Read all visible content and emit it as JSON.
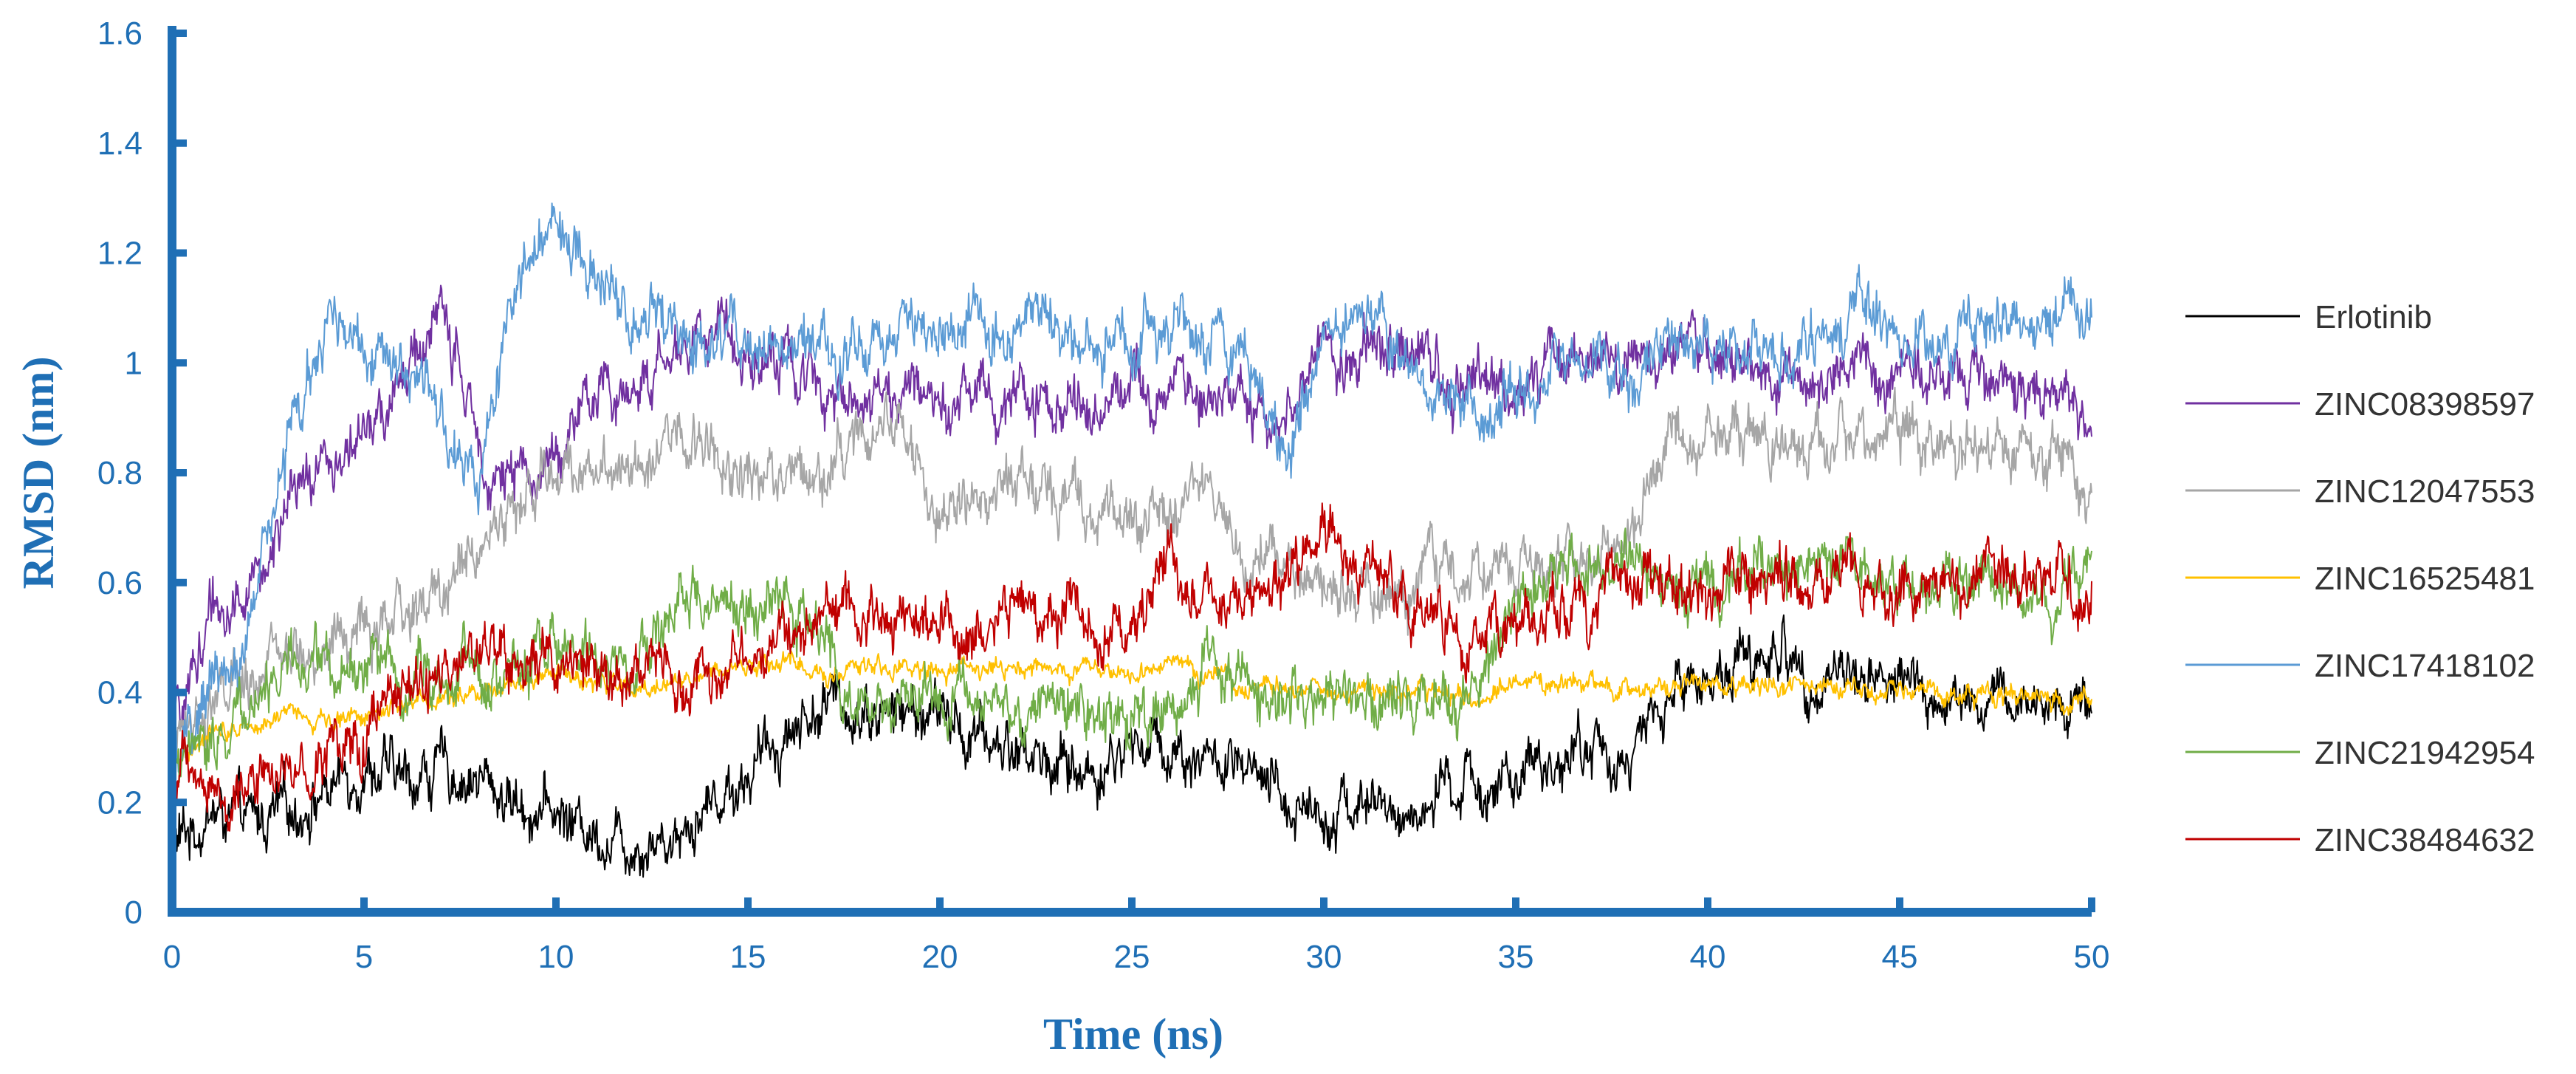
{
  "chart_data": {
    "type": "line",
    "title": "",
    "xlabel": "Time (ns)",
    "ylabel": "RMSD (nm)",
    "xlim": [
      0,
      50
    ],
    "ylim": [
      0,
      1.6
    ],
    "xticks": [
      0,
      5,
      10,
      15,
      20,
      25,
      30,
      35,
      40,
      45,
      50
    ],
    "yticks": [
      0,
      0.2,
      0.4,
      0.6,
      0.8,
      1,
      1.2,
      1.4,
      1.6
    ],
    "xtick_labels": [
      "0",
      "5",
      "10",
      "15",
      "20",
      "25",
      "30",
      "35",
      "40",
      "45",
      "50"
    ],
    "ytick_labels": [
      "0",
      "0.2",
      "0.4",
      "0.6",
      "0.8",
      "1",
      "1.2",
      "1.4",
      "1.6"
    ],
    "grid": false,
    "legend_position": "right",
    "axis_color": "#1f6fb5",
    "noise_note": "values are approximate trend of noisy MD traces",
    "series": [
      {
        "name": "Erlotinib",
        "color": "#000000",
        "x": [
          0,
          1,
          2,
          3,
          4,
          5,
          6,
          7,
          8,
          9,
          10,
          11,
          12,
          13,
          14,
          15,
          16,
          17,
          18,
          19,
          20,
          21,
          22,
          23,
          24,
          25,
          26,
          27,
          28,
          29,
          30,
          31,
          32,
          33,
          34,
          35,
          36,
          37,
          38,
          39,
          40,
          41,
          42,
          43,
          44,
          45,
          46,
          47,
          48,
          49,
          50
        ],
        "y": [
          0.12,
          0.18,
          0.16,
          0.18,
          0.22,
          0.27,
          0.24,
          0.26,
          0.24,
          0.2,
          0.18,
          0.15,
          0.13,
          0.14,
          0.2,
          0.25,
          0.33,
          0.38,
          0.37,
          0.36,
          0.36,
          0.31,
          0.3,
          0.27,
          0.25,
          0.31,
          0.3,
          0.28,
          0.24,
          0.2,
          0.19,
          0.2,
          0.17,
          0.2,
          0.24,
          0.22,
          0.28,
          0.3,
          0.27,
          0.4,
          0.43,
          0.46,
          0.47,
          0.42,
          0.44,
          0.42,
          0.38,
          0.37,
          0.38,
          0.38,
          0.39
        ]
      },
      {
        "name": "ZINC08398597",
        "color": "#7030a0",
        "x": [
          0,
          1,
          2,
          3,
          4,
          5,
          6,
          7,
          8,
          9,
          10,
          11,
          12,
          13,
          14,
          15,
          16,
          17,
          18,
          19,
          20,
          21,
          22,
          23,
          24,
          25,
          26,
          27,
          28,
          29,
          30,
          31,
          32,
          33,
          34,
          35,
          36,
          37,
          38,
          39,
          40,
          41,
          42,
          43,
          44,
          45,
          46,
          47,
          48,
          49,
          50
        ],
        "y": [
          0.3,
          0.55,
          0.58,
          0.72,
          0.82,
          0.86,
          0.96,
          1.1,
          0.85,
          0.77,
          0.84,
          0.93,
          0.96,
          1.0,
          1.08,
          1.03,
          0.99,
          0.97,
          0.94,
          0.93,
          0.96,
          0.95,
          0.93,
          0.92,
          0.93,
          0.97,
          0.96,
          0.95,
          0.92,
          0.9,
          1.02,
          1.03,
          1.0,
          0.98,
          0.95,
          0.96,
          1.02,
          1.01,
          1.0,
          1.01,
          1.0,
          0.98,
          0.98,
          0.97,
          0.98,
          0.96,
          0.97,
          0.98,
          0.96,
          0.93,
          0.9
        ]
      },
      {
        "name": "ZINC12047553",
        "color": "#a6a6a6",
        "x": [
          0,
          1,
          2,
          3,
          4,
          5,
          6,
          7,
          8,
          9,
          10,
          11,
          12,
          13,
          14,
          15,
          16,
          17,
          18,
          19,
          20,
          21,
          22,
          23,
          24,
          25,
          26,
          27,
          28,
          29,
          30,
          31,
          32,
          33,
          34,
          35,
          36,
          37,
          38,
          39,
          40,
          41,
          42,
          43,
          44,
          45,
          46,
          47,
          48,
          49,
          50
        ],
        "y": [
          0.3,
          0.38,
          0.42,
          0.46,
          0.48,
          0.5,
          0.53,
          0.58,
          0.68,
          0.74,
          0.8,
          0.82,
          0.84,
          0.86,
          0.84,
          0.81,
          0.8,
          0.82,
          0.86,
          0.9,
          0.72,
          0.75,
          0.78,
          0.77,
          0.76,
          0.72,
          0.74,
          0.76,
          0.66,
          0.62,
          0.6,
          0.58,
          0.56,
          0.63,
          0.64,
          0.62,
          0.63,
          0.64,
          0.68,
          0.86,
          0.84,
          0.85,
          0.84,
          0.85,
          0.86,
          0.86,
          0.85,
          0.84,
          0.84,
          0.82,
          0.8
        ]
      },
      {
        "name": "ZINC16525481",
        "color": "#ffc000",
        "x": [
          0,
          1,
          2,
          3,
          4,
          5,
          6,
          7,
          8,
          9,
          10,
          11,
          12,
          13,
          14,
          15,
          16,
          17,
          18,
          19,
          20,
          21,
          22,
          23,
          24,
          25,
          26,
          27,
          28,
          29,
          30,
          31,
          32,
          33,
          34,
          35,
          36,
          37,
          38,
          39,
          40,
          41,
          42,
          43,
          44,
          45,
          46,
          47,
          48,
          49,
          50
        ],
        "y": [
          0.28,
          0.33,
          0.35,
          0.36,
          0.35,
          0.36,
          0.38,
          0.39,
          0.41,
          0.42,
          0.43,
          0.42,
          0.4,
          0.42,
          0.43,
          0.45,
          0.46,
          0.43,
          0.44,
          0.45,
          0.43,
          0.44,
          0.44,
          0.43,
          0.44,
          0.43,
          0.44,
          0.43,
          0.41,
          0.42,
          0.41,
          0.4,
          0.4,
          0.39,
          0.4,
          0.41,
          0.42,
          0.41,
          0.4,
          0.41,
          0.41,
          0.42,
          0.41,
          0.41,
          0.4,
          0.4,
          0.4,
          0.39,
          0.39,
          0.39,
          0.39
        ]
      },
      {
        "name": "ZINC17418102",
        "color": "#5b9bd5",
        "x": [
          0,
          1,
          2,
          3,
          4,
          5,
          6,
          7,
          8,
          9,
          10,
          11,
          12,
          13,
          14,
          15,
          16,
          17,
          18,
          19,
          20,
          21,
          22,
          23,
          24,
          25,
          26,
          27,
          28,
          29,
          30,
          31,
          32,
          33,
          34,
          35,
          36,
          37,
          38,
          39,
          40,
          41,
          42,
          43,
          44,
          45,
          46,
          47,
          48,
          49,
          50
        ],
        "y": [
          0.25,
          0.4,
          0.5,
          0.85,
          1.05,
          1.05,
          1.02,
          0.88,
          0.75,
          1.15,
          1.25,
          1.18,
          1.08,
          1.06,
          1.02,
          1.04,
          1.02,
          1.0,
          1.02,
          1.05,
          1.04,
          1.06,
          1.05,
          1.08,
          1.04,
          1.06,
          1.08,
          1.05,
          1.02,
          0.8,
          1.05,
          1.1,
          1.03,
          0.92,
          0.9,
          0.97,
          1.0,
          0.98,
          0.96,
          1.02,
          1.03,
          1.04,
          1.0,
          1.06,
          1.1,
          1.02,
          1.03,
          1.06,
          1.08,
          1.07,
          1.08
        ]
      },
      {
        "name": "ZINC21942954",
        "color": "#70ad47",
        "x": [
          0,
          1,
          2,
          3,
          4,
          5,
          6,
          7,
          8,
          9,
          10,
          11,
          12,
          13,
          14,
          15,
          16,
          17,
          18,
          19,
          20,
          21,
          22,
          23,
          24,
          25,
          26,
          27,
          28,
          29,
          30,
          31,
          32,
          33,
          34,
          35,
          36,
          37,
          38,
          39,
          40,
          41,
          42,
          43,
          44,
          45,
          46,
          47,
          48,
          49,
          50
        ],
        "y": [
          0.22,
          0.32,
          0.38,
          0.44,
          0.45,
          0.46,
          0.42,
          0.44,
          0.43,
          0.46,
          0.48,
          0.46,
          0.44,
          0.56,
          0.55,
          0.56,
          0.58,
          0.45,
          0.36,
          0.38,
          0.4,
          0.38,
          0.38,
          0.39,
          0.38,
          0.36,
          0.38,
          0.46,
          0.42,
          0.4,
          0.38,
          0.36,
          0.38,
          0.38,
          0.4,
          0.58,
          0.6,
          0.62,
          0.64,
          0.6,
          0.58,
          0.6,
          0.64,
          0.65,
          0.62,
          0.6,
          0.6,
          0.62,
          0.6,
          0.6,
          0.62
        ]
      },
      {
        "name": "ZINC38484632",
        "color": "#c00000",
        "x": [
          0,
          1,
          2,
          3,
          4,
          5,
          6,
          7,
          8,
          9,
          10,
          11,
          12,
          13,
          14,
          15,
          16,
          17,
          18,
          19,
          20,
          21,
          22,
          23,
          24,
          25,
          26,
          27,
          28,
          29,
          30,
          31,
          32,
          33,
          34,
          35,
          36,
          37,
          38,
          39,
          40,
          41,
          42,
          43,
          44,
          45,
          46,
          47,
          48,
          49,
          50
        ],
        "y": [
          0.25,
          0.22,
          0.24,
          0.25,
          0.3,
          0.3,
          0.38,
          0.42,
          0.48,
          0.46,
          0.44,
          0.45,
          0.42,
          0.44,
          0.42,
          0.46,
          0.5,
          0.54,
          0.56,
          0.53,
          0.5,
          0.52,
          0.56,
          0.54,
          0.52,
          0.54,
          0.62,
          0.55,
          0.56,
          0.62,
          0.7,
          0.62,
          0.56,
          0.5,
          0.48,
          0.5,
          0.54,
          0.56,
          0.58,
          0.58,
          0.58,
          0.6,
          0.6,
          0.6,
          0.6,
          0.6,
          0.6,
          0.62,
          0.62,
          0.6,
          0.58
        ]
      }
    ]
  }
}
